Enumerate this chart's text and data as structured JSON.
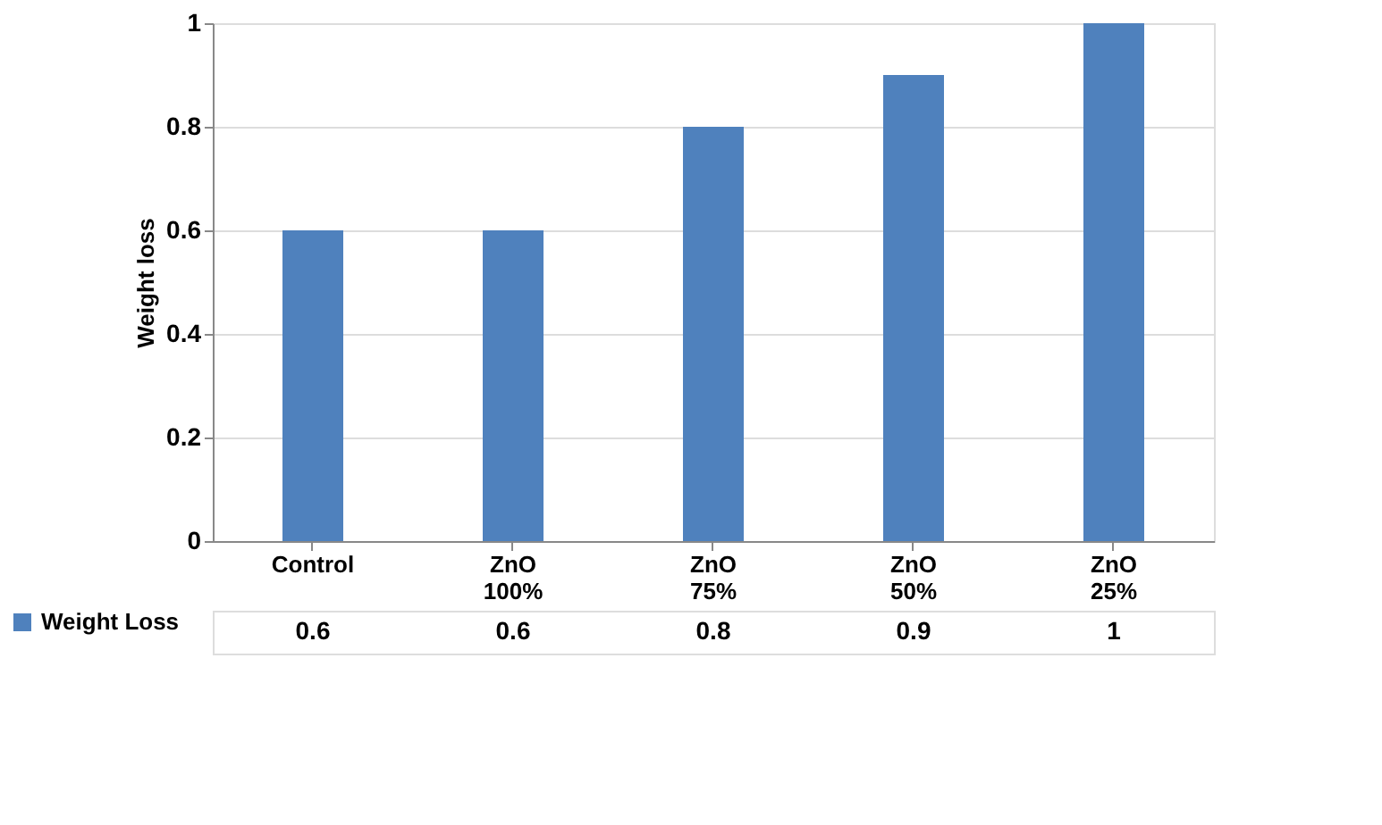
{
  "chart_data": {
    "type": "bar",
    "ylabel": "Weight loss",
    "categories": [
      "Control",
      "ZnO 100%",
      "ZnO 75%",
      "ZnO 50%",
      "ZnO 25%"
    ],
    "series": [
      {
        "name": "Weight Loss",
        "color": "#4f81bd",
        "values": [
          0.6,
          0.6,
          0.8,
          0.9,
          1
        ]
      }
    ],
    "ylim": [
      0,
      1
    ],
    "yticks": [
      0,
      0.2,
      0.4,
      0.6,
      0.8,
      1
    ],
    "grid": "y",
    "legend": "bottom left",
    "data_labels": true
  }
}
